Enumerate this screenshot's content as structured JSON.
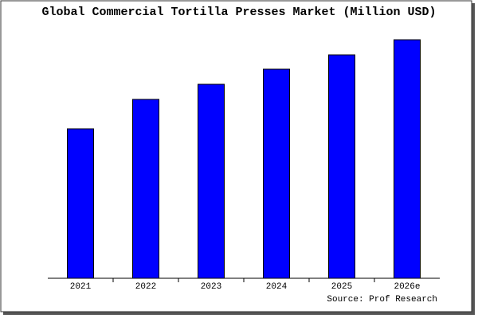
{
  "chart_data": {
    "type": "bar",
    "title": "Global Commercial Tortilla Presses Market (Million USD)",
    "categories": [
      "2021",
      "2022",
      "2023",
      "2024",
      "2025",
      "2026e"
    ],
    "values": [
      188,
      225,
      244,
      263,
      281,
      300
    ],
    "color": "#0000ff",
    "ylim": [
      0,
      302
    ],
    "source": "Source: Prof Research"
  }
}
